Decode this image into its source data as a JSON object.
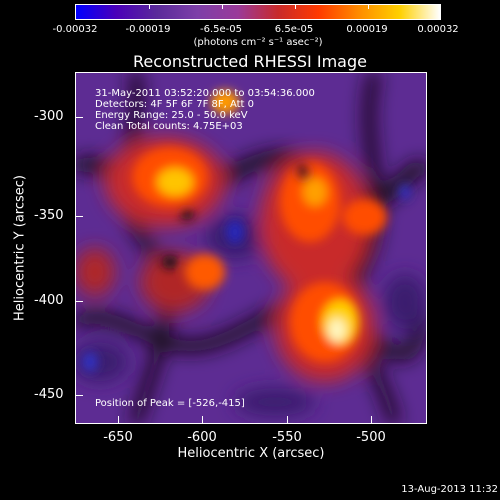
{
  "title": "Reconstructed RHESSI Image",
  "colorbar": {
    "labels": [
      "-0.00032",
      "-0.00019",
      "-6.5e-05",
      "6.5e-05",
      "0.00019",
      "0.00032"
    ],
    "units": "(photons cm⁻² s⁻¹ asec⁻²)"
  },
  "info": {
    "time": "31-May-2011 03:52:20.000 to 03:54:36.000",
    "detectors": "Detectors: 4F 5F 6F 7F 8F, Att 0",
    "energy": "Energy Range: 25.0 - 50.0 keV",
    "method": "Clean     Total counts: 4.75E+03",
    "peak": "Position of Peak = [-526,-415]"
  },
  "axes": {
    "xlabel": "Heliocentric X (arcsec)",
    "ylabel": "Heliocentric Y (arcsec)",
    "xticks": [
      "-650",
      "-600",
      "-550",
      "-500"
    ],
    "yticks": [
      "-300",
      "-350",
      "-400",
      "-450"
    ]
  },
  "footer_date": "13-Aug-2013 11:32",
  "colors": {
    "colormap": [
      "#0000ff",
      "#4a00b8",
      "#5a2a9a",
      "#7d3fa8",
      "#9a3a9a",
      "#c82a2a",
      "#ff3a00",
      "#ff8c00",
      "#ffd000",
      "#ffffff"
    ]
  }
}
